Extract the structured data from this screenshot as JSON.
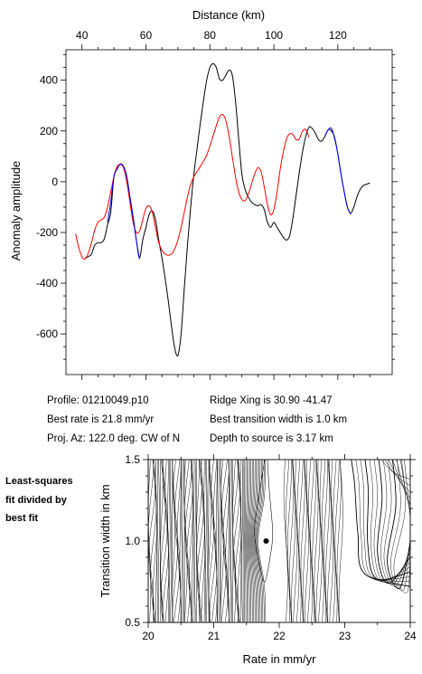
{
  "chart_data": [
    {
      "type": "line",
      "title": "",
      "xlabel": "Distance (km)",
      "ylabel": "Anomaly amplitude",
      "xlim": [
        35,
        137
      ],
      "ylim": [
        -760,
        520
      ],
      "x_ticks": [
        40,
        60,
        80,
        100,
        120
      ],
      "y_ticks": [
        400,
        200,
        0,
        -200,
        -400,
        -600
      ],
      "x_axis_position": "top",
      "series": [
        {
          "color": "#000000",
          "points": [
            [
              41,
              -300
            ],
            [
              42,
              -295
            ],
            [
              43,
              -285
            ],
            [
              44,
              -250
            ],
            [
              45,
              -240
            ],
            [
              46,
              -240
            ],
            [
              47,
              -225
            ],
            [
              48,
              -170
            ],
            [
              49,
              -120
            ],
            [
              50,
              20
            ],
            [
              51,
              50
            ],
            [
              52,
              70
            ],
            [
              53,
              60
            ],
            [
              54,
              20
            ],
            [
              55,
              -60
            ],
            [
              56,
              -140
            ],
            [
              57,
              -230
            ],
            [
              58,
              -300
            ],
            [
              59,
              -230
            ],
            [
              60,
              -180
            ],
            [
              61,
              -130
            ],
            [
              62,
              -115
            ],
            [
              63,
              -150
            ],
            [
              64,
              -230
            ],
            [
              65,
              -300
            ],
            [
              66,
              -380
            ],
            [
              67,
              -470
            ],
            [
              68,
              -570
            ],
            [
              69,
              -655
            ],
            [
              70,
              -685
            ],
            [
              71,
              -600
            ],
            [
              72,
              -420
            ],
            [
              73,
              -250
            ],
            [
              74,
              -100
            ],
            [
              75,
              30
            ],
            [
              76,
              130
            ],
            [
              77,
              230
            ],
            [
              78,
              320
            ],
            [
              79,
              400
            ],
            [
              80,
              450
            ],
            [
              81,
              465
            ],
            [
              82,
              450
            ],
            [
              83,
              405
            ],
            [
              84,
              400
            ],
            [
              85,
              420
            ],
            [
              86,
              440
            ],
            [
              87,
              420
            ],
            [
              88,
              320
            ],
            [
              89,
              170
            ],
            [
              90,
              30
            ],
            [
              91,
              -30
            ],
            [
              92,
              -60
            ],
            [
              93,
              -80
            ],
            [
              94,
              -90
            ],
            [
              95,
              -95
            ],
            [
              96,
              -90
            ],
            [
              97,
              -110
            ],
            [
              98,
              -160
            ],
            [
              99,
              -180
            ],
            [
              100,
              -160
            ],
            [
              101,
              -180
            ],
            [
              102,
              -200
            ],
            [
              103,
              -220
            ],
            [
              104,
              -230
            ],
            [
              105,
              -210
            ],
            [
              106,
              -140
            ],
            [
              107,
              -50
            ],
            [
              108,
              40
            ],
            [
              109,
              120
            ],
            [
              110,
              180
            ],
            [
              111,
              215
            ],
            [
              112,
              210
            ],
            [
              113,
              190
            ],
            [
              114,
              165
            ],
            [
              115,
              160
            ],
            [
              116,
              180
            ],
            [
              117,
              205
            ],
            [
              118,
              200
            ],
            [
              119,
              175
            ],
            [
              120,
              110
            ],
            [
              121,
              30
            ],
            [
              122,
              -40
            ],
            [
              123,
              -100
            ],
            [
              124,
              -125
            ],
            [
              125,
              -100
            ],
            [
              126,
              -60
            ],
            [
              127,
              -30
            ],
            [
              128,
              -15
            ],
            [
              129,
              -10
            ],
            [
              130,
              -5
            ]
          ]
        },
        {
          "color": "#0000ff",
          "points": [
            [
              48,
              -160
            ],
            [
              49,
              -80
            ],
            [
              50,
              20
            ],
            [
              51,
              50
            ],
            [
              52,
              70
            ],
            [
              53,
              60
            ],
            [
              54,
              20
            ],
            [
              55,
              -60
            ],
            [
              56,
              -140
            ],
            [
              57,
              -230
            ],
            [
              58,
              -305
            ],
            [
              116,
              180
            ],
            [
              117,
              205
            ],
            [
              118,
              210
            ],
            [
              119,
              170
            ],
            [
              120,
              110
            ],
            [
              121,
              30
            ],
            [
              122,
              -40
            ],
            [
              123,
              -100
            ],
            [
              124,
              -128
            ]
          ]
        },
        {
          "color": "#ff0000",
          "points": [
            [
              38,
              -205
            ],
            [
              39,
              -260
            ],
            [
              40,
              -295
            ],
            [
              41,
              -305
            ],
            [
              42,
              -280
            ],
            [
              43,
              -240
            ],
            [
              44,
              -190
            ],
            [
              45,
              -160
            ],
            [
              46,
              -150
            ],
            [
              47,
              -140
            ],
            [
              48,
              -100
            ],
            [
              49,
              -40
            ],
            [
              50,
              20
            ],
            [
              51,
              60
            ],
            [
              52,
              68
            ],
            [
              53,
              55
            ],
            [
              54,
              0
            ],
            [
              55,
              -80
            ],
            [
              56,
              -160
            ],
            [
              57,
              -200
            ],
            [
              58,
              -195
            ],
            [
              59,
              -150
            ],
            [
              60,
              -105
            ],
            [
              61,
              -95
            ],
            [
              62,
              -120
            ],
            [
              63,
              -180
            ],
            [
              64,
              -240
            ],
            [
              65,
              -270
            ],
            [
              66,
              -285
            ],
            [
              67,
              -290
            ],
            [
              68,
              -285
            ],
            [
              69,
              -265
            ],
            [
              70,
              -230
            ],
            [
              71,
              -180
            ],
            [
              72,
              -120
            ],
            [
              73,
              -60
            ],
            [
              74,
              -10
            ],
            [
              75,
              20
            ],
            [
              76,
              40
            ],
            [
              77,
              60
            ],
            [
              78,
              80
            ],
            [
              79,
              105
            ],
            [
              80,
              140
            ],
            [
              81,
              180
            ],
            [
              82,
              220
            ],
            [
              83,
              255
            ],
            [
              84,
              265
            ],
            [
              85,
              240
            ],
            [
              86,
              180
            ],
            [
              87,
              100
            ],
            [
              88,
              20
            ],
            [
              89,
              -40
            ],
            [
              90,
              -70
            ],
            [
              91,
              -75
            ],
            [
              92,
              -50
            ],
            [
              93,
              -10
            ],
            [
              94,
              30
            ],
            [
              95,
              55
            ],
            [
              96,
              40
            ],
            [
              97,
              -20
            ],
            [
              98,
              -90
            ],
            [
              99,
              -130
            ],
            [
              100,
              -110
            ],
            [
              101,
              -40
            ],
            [
              102,
              50
            ],
            [
              103,
              120
            ],
            [
              104,
              170
            ],
            [
              105,
              190
            ],
            [
              106,
              185
            ],
            [
              107,
              165
            ],
            [
              108,
              170
            ],
            [
              109,
              200
            ],
            [
              110,
              205
            ],
            [
              111,
              175
            ]
          ]
        }
      ]
    },
    {
      "type": "contour",
      "title": "",
      "xlabel": "Rate in mm/yr",
      "ylabel": "Transition width in km",
      "xlim": [
        20,
        24
      ],
      "ylim": [
        0.5,
        1.5
      ],
      "x_ticks": [
        20,
        21,
        22,
        23,
        24
      ],
      "y_ticks": [
        0.5,
        1.0,
        1.5
      ],
      "best_fit_point": {
        "x": 21.8,
        "y": 1.0
      }
    }
  ],
  "info": {
    "profile": "Profile: 01210049.p10",
    "best_rate": "Best rate is 21.8 mm/yr",
    "proj_az": "Proj. Az: 122.0 deg. CW of N",
    "ridge_xing": "Ridge Xing is 30.90 -41.47",
    "best_transition": "Best transition width is 1.0 km",
    "depth_to_source": "Depth to source is   3.17 km"
  },
  "side_note": [
    "Least-squares",
    "fit divided by",
    "best fit"
  ]
}
